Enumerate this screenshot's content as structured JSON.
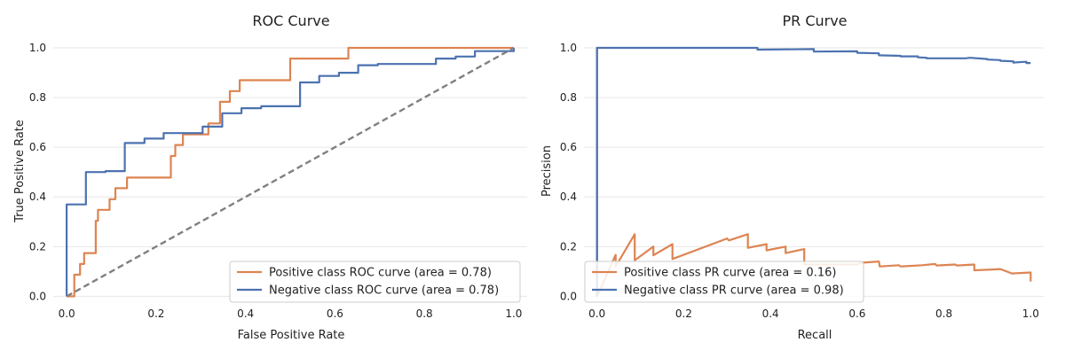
{
  "chart_data": [
    {
      "type": "line",
      "title": "ROC Curve",
      "xlabel": "False Positive Rate",
      "ylabel": "True Positive Rate",
      "xlim": [
        -0.03,
        1.03
      ],
      "ylim": [
        -0.02,
        1.05
      ],
      "xticks": [
        "0.0",
        "0.2",
        "0.4",
        "0.6",
        "0.8",
        "1.0"
      ],
      "yticks": [
        "0.0",
        "0.2",
        "0.4",
        "0.6",
        "0.8",
        "1.0"
      ],
      "grid": "horizontal",
      "legend_position": "lower-right",
      "series": [
        {
          "name": "Positive class ROC curve (area = 0.78)",
          "color": "#dd8452",
          "style": "solid",
          "x": [
            0.0,
            0.0,
            0.017,
            0.017,
            0.03,
            0.03,
            0.039,
            0.039,
            0.048,
            0.048,
            0.065,
            0.065,
            0.07,
            0.07,
            0.096,
            0.096,
            0.109,
            0.109,
            0.135,
            0.135,
            0.233,
            0.233,
            0.243,
            0.243,
            0.26,
            0.26,
            0.317,
            0.317,
            0.343,
            0.343,
            0.365,
            0.365,
            0.387,
            0.387,
            0.5,
            0.5,
            0.63,
            0.63,
            1.0,
            1.0
          ],
          "y": [
            0.0,
            0.0,
            0.0,
            0.087,
            0.087,
            0.13,
            0.13,
            0.174,
            0.174,
            0.174,
            0.174,
            0.304,
            0.304,
            0.348,
            0.348,
            0.391,
            0.391,
            0.435,
            0.435,
            0.478,
            0.478,
            0.565,
            0.565,
            0.609,
            0.609,
            0.652,
            0.652,
            0.696,
            0.696,
            0.783,
            0.783,
            0.826,
            0.826,
            0.87,
            0.87,
            0.957,
            0.957,
            1.0,
            1.0,
            1.0
          ]
        },
        {
          "name": "Negative class ROC curve (area = 0.78)",
          "color": "#4c72b0",
          "style": "solid",
          "x": [
            0.0,
            0.0,
            0.043,
            0.043,
            0.087,
            0.087,
            0.13,
            0.13,
            0.174,
            0.174,
            0.217,
            0.217,
            0.304,
            0.304,
            0.348,
            0.348,
            0.391,
            0.391,
            0.435,
            0.435,
            0.522,
            0.522,
            0.565,
            0.565,
            0.609,
            0.609,
            0.652,
            0.652,
            0.696,
            0.696,
            0.826,
            0.826,
            0.87,
            0.87,
            0.913,
            0.913,
            1.0,
            1.0
          ],
          "y": [
            0.0,
            0.37,
            0.37,
            0.5,
            0.5,
            0.504,
            0.504,
            0.617,
            0.617,
            0.635,
            0.635,
            0.657,
            0.657,
            0.683,
            0.683,
            0.737,
            0.737,
            0.757,
            0.757,
            0.765,
            0.765,
            0.861,
            0.861,
            0.887,
            0.887,
            0.9,
            0.9,
            0.93,
            0.93,
            0.935,
            0.935,
            0.957,
            0.957,
            0.965,
            0.965,
            0.987,
            0.987,
            1.0
          ]
        },
        {
          "name": "",
          "color": "#808080",
          "style": "dashed",
          "x": [
            0.0,
            1.0
          ],
          "y": [
            0.0,
            1.0
          ]
        }
      ]
    },
    {
      "type": "line",
      "title": "PR Curve",
      "xlabel": "Recall",
      "ylabel": "Precision",
      "xlim": [
        -0.03,
        1.03
      ],
      "ylim": [
        -0.02,
        1.05
      ],
      "xticks": [
        "0.0",
        "0.2",
        "0.4",
        "0.6",
        "0.8",
        "1.0"
      ],
      "yticks": [
        "0.0",
        "0.2",
        "0.4",
        "0.6",
        "0.8",
        "1.0"
      ],
      "grid": "horizontal",
      "legend_position": "lower-left",
      "series": [
        {
          "name": "Positive class PR curve (area = 0.16)",
          "color": "#dd8452",
          "style": "solid",
          "x": [
            0.0,
            0.0,
            0.0,
            0.043,
            0.043,
            0.087,
            0.087,
            0.13,
            0.13,
            0.174,
            0.174,
            0.3,
            0.304,
            0.348,
            0.348,
            0.391,
            0.391,
            0.435,
            0.435,
            0.478,
            0.478,
            0.5,
            0.55,
            0.6,
            0.609,
            0.65,
            0.652,
            0.696,
            0.7,
            0.75,
            0.78,
            0.783,
            0.826,
            0.83,
            0.87,
            0.87,
            0.913,
            0.93,
            0.957,
            1.0,
            1.0
          ],
          "y": [
            0.0,
            1.0,
            0.0,
            0.167,
            0.12,
            0.25,
            0.145,
            0.2,
            0.165,
            0.21,
            0.15,
            0.233,
            0.225,
            0.25,
            0.195,
            0.21,
            0.185,
            0.2,
            0.174,
            0.19,
            0.128,
            0.128,
            0.128,
            0.128,
            0.135,
            0.14,
            0.12,
            0.125,
            0.12,
            0.125,
            0.13,
            0.124,
            0.128,
            0.124,
            0.128,
            0.105,
            0.108,
            0.11,
            0.092,
            0.096,
            0.06
          ]
        },
        {
          "name": "Negative class PR curve (area = 0.98)",
          "color": "#4c72b0",
          "style": "solid",
          "x": [
            0.0,
            0.0,
            0.37,
            0.37,
            0.5,
            0.5,
            0.6,
            0.6,
            0.65,
            0.65,
            0.7,
            0.7,
            0.74,
            0.74,
            0.76,
            0.76,
            0.85,
            0.86,
            0.9,
            0.9,
            0.93,
            0.93,
            0.96,
            0.96,
            0.99,
            0.99,
            1.0
          ],
          "y": [
            0.0,
            1.0,
            1.0,
            0.993,
            0.995,
            0.985,
            0.986,
            0.98,
            0.978,
            0.97,
            0.968,
            0.966,
            0.966,
            0.962,
            0.96,
            0.958,
            0.958,
            0.96,
            0.955,
            0.953,
            0.951,
            0.948,
            0.946,
            0.941,
            0.944,
            0.939,
            0.939
          ]
        }
      ]
    }
  ]
}
